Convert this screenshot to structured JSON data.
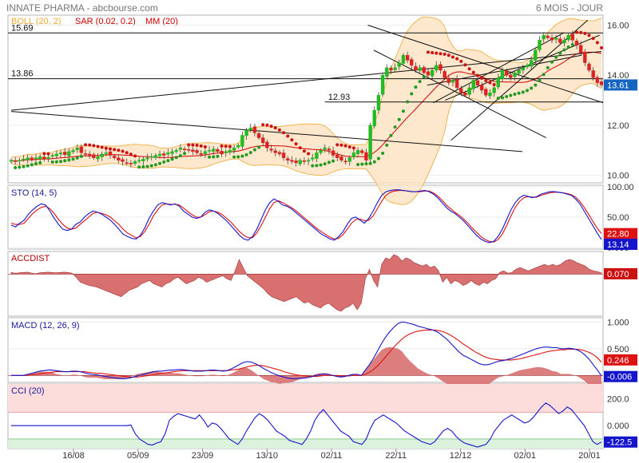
{
  "header": {
    "title": "INNATE PHARMA - abcbourse.com",
    "period": "6 MOIS - JOUR",
    "legend": [
      {
        "label": "BOLL (20, 2)",
        "color": "#f0a830"
      },
      {
        "label": "SAR (0.02, 0.2)",
        "color": "#d00000"
      },
      {
        "label": "MM (20)",
        "color": "#d00000"
      }
    ]
  },
  "colors": {
    "up": "#22bb22",
    "down": "#dd2222",
    "boll_fill": "#fde3c4",
    "boll_line": "#f0a830",
    "sar_above": "#cc1111",
    "sar_below": "#229922",
    "osc_blue": "#1515cc",
    "osc_red": "#dd1111",
    "area_red": "#d97070",
    "cci_pink": "#fddcdc",
    "cci_green": "#ddf2dd"
  },
  "chart_data": [
    {
      "type": "candlestick",
      "title": "INNATE PHARMA",
      "ylim": [
        9.7,
        16.4
      ],
      "y_ticks": [
        "16.00",
        "14.00",
        "12.00",
        "10.00"
      ],
      "x_ticks": [
        "16/08",
        "05/09",
        "23/09",
        "13/10",
        "02/11",
        "22/11",
        "12/12",
        "02/01",
        "20/01"
      ],
      "last_value": "13.61",
      "levels": [
        {
          "label": "15.69",
          "value": 15.69
        },
        {
          "label": "13.86",
          "value": 13.86
        },
        {
          "label": "12.93",
          "value": 12.93
        }
      ],
      "close": [
        10.6,
        10.55,
        10.6,
        10.65,
        10.7,
        10.62,
        10.7,
        10.75,
        10.65,
        10.72,
        10.8,
        10.85,
        10.9,
        10.82,
        10.95,
        11.0,
        11.1,
        10.9,
        10.85,
        10.8,
        10.7,
        10.75,
        10.85,
        10.9,
        10.8,
        10.7,
        10.6,
        10.55,
        10.5,
        10.45,
        10.55,
        10.6,
        10.65,
        10.7,
        10.75,
        10.8,
        10.85,
        10.8,
        10.9,
        10.95,
        11.0,
        11.1,
        11.05,
        11.0,
        10.95,
        10.9,
        10.85,
        10.95,
        11.0,
        11.05,
        10.95,
        10.85,
        10.95,
        11.0,
        11.1,
        11.2,
        11.6,
        11.8,
        11.9,
        11.7,
        11.5,
        11.3,
        11.1,
        11.0,
        10.9,
        10.85,
        10.7,
        10.6,
        10.55,
        10.5,
        10.6,
        10.55,
        10.6,
        10.7,
        10.9,
        11.0,
        11.1,
        11.0,
        10.8,
        10.7,
        10.6,
        10.55,
        10.7,
        10.9,
        11.0,
        10.9,
        10.6,
        12.0,
        12.6,
        13.2,
        14.0,
        14.3,
        14.2,
        14.3,
        14.5,
        14.8,
        14.6,
        14.4,
        14.2,
        14.3,
        14.1,
        14.0,
        14.2,
        14.4,
        14.2,
        13.9,
        13.7,
        13.8,
        13.5,
        13.3,
        13.2,
        13.5,
        13.8,
        13.6,
        13.4,
        13.2,
        13.3,
        13.5,
        13.9,
        14.2,
        14.0,
        13.9,
        14.1,
        14.2,
        14.3,
        14.4,
        14.6,
        15.0,
        15.4,
        15.6,
        15.5,
        15.4,
        15.5,
        15.3,
        15.4,
        15.6,
        15.4,
        15.2,
        14.9,
        14.5,
        14.2,
        13.9,
        13.7,
        13.61
      ],
      "bollinger": {
        "upper": [],
        "lower": [],
        "note": "computed"
      },
      "sar": "computed",
      "mm": "computed"
    },
    {
      "type": "line",
      "title": "STO (14, 5)",
      "ylim": [
        0,
        100
      ],
      "y_ticks": [
        "100.00",
        "50.00",
        "0.000"
      ],
      "last_value": "13.14",
      "last_value_red": "22.80",
      "series": [
        {
          "name": "%K",
          "values": [
            37,
            34,
            40,
            45,
            55,
            62,
            68,
            72,
            70,
            60,
            48,
            38,
            30,
            28,
            30,
            38,
            42,
            50,
            56,
            60,
            58,
            55,
            50,
            45,
            38,
            30,
            22,
            18,
            15,
            14,
            20,
            32,
            48,
            60,
            70,
            74,
            72,
            70,
            72,
            68,
            60,
            55,
            50,
            48,
            50,
            58,
            62,
            60,
            56,
            50,
            44,
            36,
            28,
            20,
            14,
            12,
            18,
            30,
            46,
            62,
            74,
            80,
            76,
            70,
            68,
            64,
            58,
            52,
            46,
            40,
            34,
            28,
            22,
            18,
            14,
            12,
            18,
            26,
            38,
            48,
            50,
            45,
            40,
            48,
            60,
            74,
            86,
            92,
            94,
            95,
            95,
            94,
            93,
            92,
            92,
            93,
            94,
            92,
            88,
            82,
            74,
            66,
            60,
            56,
            50,
            44,
            36,
            28,
            20,
            14,
            10,
            8,
            10,
            18,
            30,
            46,
            62,
            74,
            82,
            86,
            84,
            82,
            84,
            88,
            90,
            92,
            92,
            91,
            90,
            88,
            86,
            80,
            72,
            60,
            48,
            36,
            24,
            13
          ]
        },
        {
          "name": "%D",
          "values": [
            40,
            38,
            38,
            40,
            48,
            56,
            62,
            66,
            68,
            64,
            56,
            46,
            38,
            32,
            30,
            32,
            38,
            44,
            50,
            56,
            58,
            56,
            54,
            50,
            44,
            38,
            30,
            24,
            20,
            16,
            18,
            26,
            38,
            52,
            62,
            70,
            72,
            71,
            71,
            70,
            65,
            59,
            54,
            50,
            50,
            54,
            59,
            60,
            58,
            54,
            48,
            42,
            34,
            26,
            20,
            16,
            16,
            24,
            36,
            50,
            64,
            74,
            77,
            74,
            70,
            66,
            61,
            55,
            49,
            43,
            37,
            31,
            26,
            21,
            17,
            14,
            15,
            21,
            30,
            40,
            46,
            47,
            44,
            45,
            52,
            64,
            76,
            86,
            91,
            93,
            94,
            94,
            93,
            92,
            92,
            92,
            93,
            93,
            90,
            85,
            78,
            70,
            64,
            58,
            53,
            47,
            40,
            32,
            25,
            18,
            13,
            10,
            9,
            13,
            22,
            36,
            52,
            66,
            76,
            82,
            84,
            83,
            83,
            86,
            88,
            90,
            91,
            91,
            90,
            89,
            87,
            83,
            76,
            66,
            55,
            43,
            32,
            23
          ]
        }
      ]
    },
    {
      "type": "area",
      "title": "ACCDIST",
      "last_value": "0.070",
      "values": [
        0.1,
        0.05,
        0.08,
        0.1,
        0.12,
        0.06,
        0.02,
        0.08,
        0.1,
        0.12,
        0.1,
        0.08,
        0.1,
        0.12,
        0.1,
        0.05,
        -0.2,
        -0.5,
        -0.6,
        -0.7,
        -0.75,
        -0.8,
        -0.9,
        -1.0,
        -1.1,
        -1.2,
        -1.3,
        -1.4,
        -1.2,
        -1.0,
        -0.9,
        -0.8,
        -0.6,
        -0.5,
        -0.4,
        -0.6,
        -0.7,
        -0.8,
        -0.6,
        -0.5,
        -0.3,
        -0.2,
        -0.4,
        -0.6,
        -0.5,
        -0.4,
        -0.2,
        -0.3,
        -0.5,
        -0.4,
        -0.3,
        -0.2,
        -0.1,
        -0.3,
        -0.4,
        0.2,
        0.9,
        0.4,
        -0.1,
        -0.3,
        -0.5,
        -0.7,
        -0.9,
        -1.2,
        -1.4,
        -1.5,
        -1.6,
        -1.7,
        -1.6,
        -1.5,
        -1.4,
        -1.6,
        -1.8,
        -1.7,
        -1.9,
        -2.0,
        -2.1,
        -1.9,
        -1.8,
        -2.0,
        -2.2,
        -2.3,
        -2.1,
        -2.0,
        -1.8,
        -2.2,
        -1.8,
        -0.3,
        0.3,
        -0.4,
        -0.8,
        0.6,
        1.0,
        0.9,
        1.2,
        1.1,
        0.8,
        1.0,
        0.9,
        0.7,
        0.6,
        0.5,
        0.6,
        0.4,
        0.5,
        0.2,
        -0.5,
        -0.2,
        -0.6,
        -0.4,
        -0.5,
        -0.7,
        -0.6,
        -0.4,
        -0.6,
        -0.7,
        -0.5,
        -0.6,
        -0.4,
        -0.3,
        0.1,
        0.2,
        0.05,
        0.1,
        0.3,
        0.4,
        0.3,
        0.2,
        0.3,
        0.4,
        0.5,
        0.6,
        0.5,
        0.6,
        0.5,
        0.6,
        0.8,
        0.9,
        0.85,
        0.7,
        0.6,
        0.5,
        0.3,
        0.2,
        0.15,
        0.07
      ]
    },
    {
      "type": "line",
      "title": "MACD (12, 26, 9)",
      "ylim": [
        -0.1,
        1.05
      ],
      "y_ticks": [
        "1.000",
        "0.500",
        "0.000"
      ],
      "last_value": "0.246",
      "last_value_blue": "-0.006",
      "series": [
        {
          "name": "MACD",
          "values": [
            0,
            0,
            0,
            0,
            0.02,
            0.04,
            0.06,
            0.08,
            0.09,
            0.1,
            0.1,
            0.09,
            0.08,
            0.07,
            0.07,
            0.08,
            0.08,
            0.07,
            0.05,
            0.03,
            0.02,
            0.01,
            0.0,
            -0.02,
            -0.03,
            -0.04,
            -0.05,
            -0.06,
            -0.06,
            -0.05,
            -0.03,
            -0.01,
            0.01,
            0.03,
            0.05,
            0.07,
            0.08,
            0.08,
            0.09,
            0.1,
            0.1,
            0.11,
            0.11,
            0.1,
            0.09,
            0.08,
            0.08,
            0.08,
            0.09,
            0.1,
            0.1,
            0.09,
            0.08,
            0.09,
            0.12,
            0.16,
            0.2,
            0.24,
            0.26,
            0.25,
            0.22,
            0.18,
            0.13,
            0.09,
            0.05,
            0.02,
            -0.01,
            -0.03,
            -0.05,
            -0.06,
            -0.06,
            -0.05,
            -0.05,
            -0.04,
            -0.02,
            0.0,
            0.02,
            0.03,
            0.02,
            0.0,
            -0.02,
            -0.03,
            -0.02,
            0.0,
            0.02,
            0.02,
            0.0,
            0.1,
            0.2,
            0.32,
            0.46,
            0.6,
            0.72,
            0.82,
            0.9,
            0.97,
            1.0,
            0.99,
            0.97,
            0.95,
            0.92,
            0.9,
            0.88,
            0.86,
            0.84,
            0.8,
            0.74,
            0.68,
            0.6,
            0.52,
            0.44,
            0.38,
            0.34,
            0.3,
            0.26,
            0.22,
            0.2,
            0.2,
            0.22,
            0.25,
            0.27,
            0.28,
            0.3,
            0.32,
            0.35,
            0.38,
            0.41,
            0.44,
            0.47,
            0.5,
            0.52,
            0.53,
            0.53,
            0.52,
            0.52,
            0.5,
            0.5,
            0.51,
            0.5,
            0.48,
            0.44,
            0.38,
            0.3,
            0.2,
            0.1,
            -0.006
          ]
        },
        {
          "name": "Signal",
          "values": [
            0,
            0,
            0,
            0,
            0.0,
            0.01,
            0.02,
            0.03,
            0.04,
            0.05,
            0.06,
            0.07,
            0.07,
            0.07,
            0.07,
            0.07,
            0.07,
            0.07,
            0.07,
            0.06,
            0.05,
            0.04,
            0.04,
            0.03,
            0.02,
            0.01,
            0.0,
            -0.01,
            -0.02,
            -0.03,
            -0.03,
            -0.03,
            -0.02,
            -0.01,
            0.0,
            0.01,
            0.03,
            0.04,
            0.05,
            0.06,
            0.07,
            0.08,
            0.09,
            0.09,
            0.09,
            0.09,
            0.09,
            0.09,
            0.09,
            0.09,
            0.09,
            0.09,
            0.09,
            0.09,
            0.1,
            0.11,
            0.12,
            0.14,
            0.16,
            0.18,
            0.19,
            0.19,
            0.18,
            0.16,
            0.14,
            0.12,
            0.1,
            0.07,
            0.05,
            0.03,
            0.01,
            0.0,
            -0.01,
            -0.02,
            -0.02,
            -0.02,
            -0.01,
            0.0,
            0.0,
            0.0,
            0.0,
            -0.01,
            -0.01,
            -0.01,
            0.0,
            0.0,
            0.0,
            0.02,
            0.06,
            0.11,
            0.18,
            0.26,
            0.35,
            0.44,
            0.53,
            0.61,
            0.68,
            0.74,
            0.78,
            0.81,
            0.83,
            0.84,
            0.85,
            0.85,
            0.85,
            0.84,
            0.82,
            0.79,
            0.75,
            0.7,
            0.65,
            0.59,
            0.54,
            0.49,
            0.44,
            0.4,
            0.36,
            0.33,
            0.31,
            0.3,
            0.29,
            0.29,
            0.29,
            0.29,
            0.3,
            0.31,
            0.33,
            0.35,
            0.37,
            0.39,
            0.41,
            0.43,
            0.45,
            0.46,
            0.47,
            0.48,
            0.48,
            0.49,
            0.49,
            0.49,
            0.48,
            0.46,
            0.43,
            0.39,
            0.33,
            0.246
          ]
        }
      ]
    },
    {
      "type": "line",
      "title": "CCI (20)",
      "ylim": [
        -160,
        300
      ],
      "y_ticks": [
        "200.0",
        "0.000"
      ],
      "last_value": "-122.5",
      "values": [
        0,
        0,
        0,
        0,
        0,
        0,
        0,
        0,
        0,
        0,
        0,
        0,
        0,
        0,
        0,
        0,
        0,
        0,
        0,
        0,
        0,
        0,
        0,
        0,
        0,
        0,
        0,
        0,
        5,
        -60,
        -100,
        -120,
        -140,
        -145,
        -130,
        -120,
        -60,
        40,
        70,
        90,
        80,
        70,
        60,
        50,
        80,
        40,
        -10,
        20,
        10,
        -20,
        -60,
        -100,
        -120,
        -140,
        -100,
        -40,
        10,
        60,
        90,
        70,
        40,
        0,
        -40,
        -60,
        -80,
        -110,
        -120,
        -130,
        -140,
        -100,
        -40,
        40,
        90,
        120,
        80,
        40,
        0,
        -40,
        -60,
        -80,
        -120,
        -130,
        -140,
        -100,
        -20,
        40,
        60,
        80,
        60,
        40,
        20,
        -10,
        -40,
        -60,
        -80,
        -100,
        -120,
        -130,
        -140,
        -120,
        -80,
        -40,
        -20,
        -40,
        -80,
        -110,
        -130,
        -140,
        -150,
        -160,
        -150,
        -140,
        -100,
        -40,
        0,
        40,
        60,
        80,
        60,
        40,
        20,
        30,
        60,
        100,
        140,
        170,
        150,
        120,
        90,
        110,
        140,
        120,
        80,
        40,
        0,
        -60,
        -120,
        -140,
        -122.5
      ]
    }
  ]
}
